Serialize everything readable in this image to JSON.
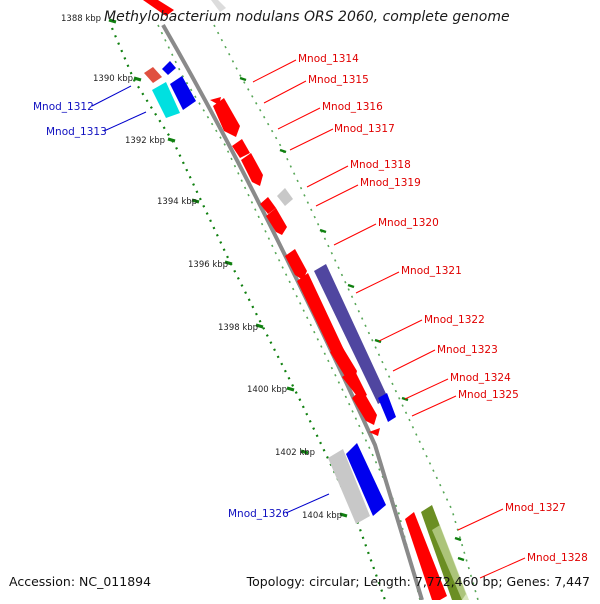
{
  "title": "Methylobacterium nodulans ORS 2060, complete genome",
  "accession": "Accession: NC_011894",
  "summary": "Topology: circular; Length: 7,772,460 bp; Genes: 7,447",
  "ticks": [
    "1388 kbp",
    "1390 kbp",
    "1392 kbp",
    "1394 kbp",
    "1396 kbp",
    "1398 kbp",
    "1400 kbp",
    "1402 kbp",
    "1404 kbp"
  ],
  "genes_forward": [
    "Mnod_1314",
    "Mnod_1315",
    "Mnod_1316",
    "Mnod_1317",
    "Mnod_1318",
    "Mnod_1319",
    "Mnod_1320",
    "Mnod_1321",
    "Mnod_1322",
    "Mnod_1323",
    "Mnod_1324",
    "Mnod_1325",
    "Mnod_1327",
    "Mnod_1328"
  ],
  "genes_reverse": [
    "Mnod_1312",
    "Mnod_1313",
    "Mnod_1326"
  ],
  "colors": {
    "forward_gene": "#ff0000",
    "reverse_gene": "#0000ff",
    "other_gene": "#c8c8c8",
    "cyan_gene": "#00e0e0",
    "purple_gene": "#5046a0",
    "olive_gene": "#6b8e23",
    "tick_green": "#108010",
    "backbone": "#888888"
  }
}
